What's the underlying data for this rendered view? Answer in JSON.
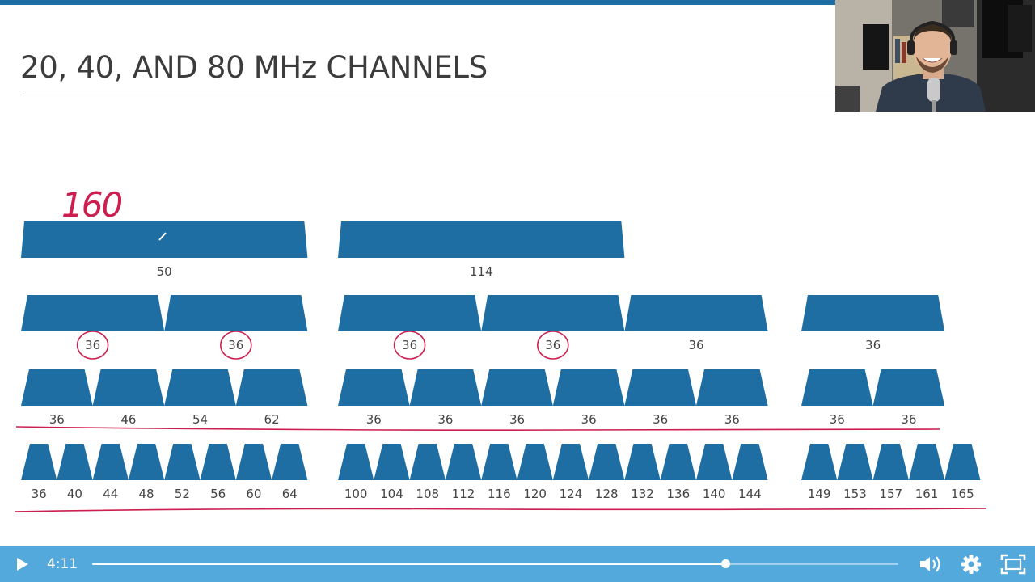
{
  "slide": {
    "title": "20, 40, AND 80 MHz CHANNELS",
    "brand_color": "#1f6ea3",
    "annotation_color": "#cc1f4f",
    "handwritten_note": "160",
    "rows": [
      {
        "width_mhz": 160,
        "groups": [
          [
            "50"
          ],
          [
            "114"
          ],
          []
        ]
      },
      {
        "width_mhz": 80,
        "groups": [
          [
            "36",
            "36"
          ],
          [
            "36",
            "36",
            "36"
          ],
          [
            "36"
          ]
        ]
      },
      {
        "width_mhz": 40,
        "groups": [
          [
            "36",
            "46",
            "54",
            "62"
          ],
          [
            "36",
            "36",
            "36",
            "36",
            "36",
            "36"
          ],
          [
            "36",
            "36"
          ]
        ]
      },
      {
        "width_mhz": 20,
        "groups": [
          [
            "36",
            "40",
            "44",
            "48",
            "52",
            "56",
            "60",
            "64"
          ],
          [
            "100",
            "104",
            "108",
            "112",
            "116",
            "120",
            "124",
            "128",
            "132",
            "136",
            "140",
            "144"
          ],
          [
            "149",
            "153",
            "157",
            "161",
            "165"
          ]
        ]
      }
    ],
    "circled_labels": [
      [
        1,
        0,
        0
      ],
      [
        1,
        0,
        1
      ],
      [
        1,
        1,
        0
      ],
      [
        1,
        1,
        1
      ]
    ]
  },
  "player": {
    "current_time": "4:11",
    "progress_fraction": 0.785,
    "accent_color": "#54a9dc",
    "icons": [
      "play-icon",
      "volume-icon",
      "settings-gear-icon",
      "fullscreen-icon"
    ]
  },
  "webcam": {
    "icon": "presenter-webcam-feed"
  }
}
